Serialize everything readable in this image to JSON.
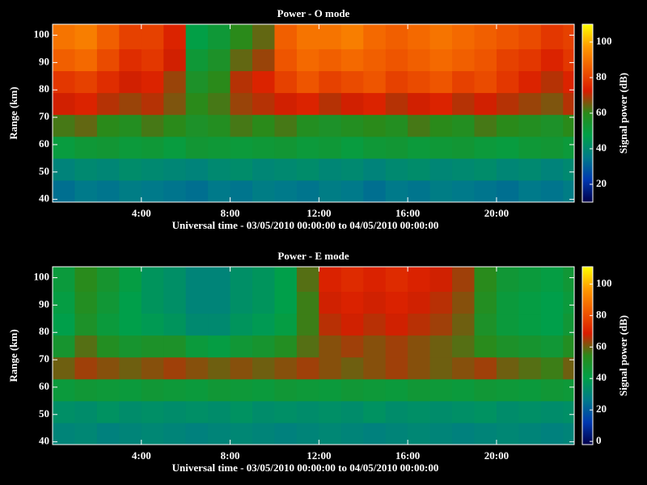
{
  "chart_data": [
    {
      "type": "heatmap",
      "title": "Power - O mode",
      "xlabel": "Universal time - 03/05/2010 00:00:00 to 04/05/2010 00:00:00",
      "ylabel": "Range (km)",
      "colorbar_label": "Signal power (dB)",
      "xlim": [
        0,
        23.5
      ],
      "ylim": [
        39,
        104
      ],
      "clim": [
        10,
        110
      ],
      "xticks": [
        {
          "value": 4,
          "label": "4:00"
        },
        {
          "value": 8,
          "label": "8:00"
        },
        {
          "value": 12,
          "label": "12:00"
        },
        {
          "value": 16,
          "label": "16:00"
        },
        {
          "value": 20,
          "label": "20:00"
        }
      ],
      "yticks": [
        40,
        50,
        60,
        70,
        80,
        90,
        100
      ],
      "cticks": [
        20,
        40,
        60,
        80,
        100
      ],
      "colormap": [
        "#00004a",
        "#0038b0",
        "#007a8a",
        "#00a048",
        "#2a8a1a",
        "#d81c00",
        "#f05a00",
        "#ff9a00",
        "#ffff00"
      ],
      "x": [
        0,
        1,
        2,
        3,
        4,
        5,
        6,
        7,
        8,
        9,
        10,
        11,
        12,
        13,
        14,
        15,
        16,
        17,
        18,
        19,
        20,
        21,
        22,
        23
      ],
      "y": [
        39,
        47,
        55,
        63,
        71,
        79,
        87,
        95
      ],
      "z": [
        [
          33,
          35,
          34,
          36,
          35,
          34,
          33,
          35,
          34,
          36,
          35,
          34,
          36,
          35,
          33,
          35,
          34,
          36,
          35,
          34,
          33,
          35,
          34,
          36
        ],
        [
          38,
          40,
          39,
          41,
          40,
          39,
          38,
          40,
          41,
          39,
          40,
          41,
          39,
          40,
          38,
          40,
          41,
          39,
          40,
          41,
          39,
          40,
          38,
          40
        ],
        [
          50,
          52,
          53,
          51,
          52,
          50,
          53,
          52,
          51,
          52,
          53,
          51,
          52,
          50,
          52,
          53,
          51,
          52,
          53,
          51,
          50,
          52,
          53,
          51
        ],
        [
          62,
          64,
          60,
          58,
          62,
          60,
          56,
          58,
          62,
          60,
          62,
          58,
          56,
          58,
          60,
          58,
          62,
          60,
          58,
          62,
          60,
          58,
          56,
          60
        ],
        [
          72,
          74,
          70,
          68,
          70,
          66,
          60,
          62,
          68,
          70,
          72,
          74,
          70,
          72,
          74,
          70,
          72,
          74,
          70,
          72,
          70,
          68,
          66,
          70
        ],
        [
          78,
          80,
          76,
          72,
          74,
          68,
          56,
          60,
          70,
          74,
          80,
          84,
          80,
          82,
          84,
          80,
          82,
          84,
          80,
          82,
          78,
          74,
          70,
          74
        ],
        [
          86,
          88,
          82,
          76,
          78,
          72,
          52,
          56,
          64,
          68,
          84,
          88,
          86,
          88,
          86,
          84,
          86,
          88,
          86,
          84,
          80,
          78,
          74,
          78
        ],
        [
          90,
          92,
          86,
          80,
          80,
          74,
          48,
          52,
          60,
          64,
          86,
          90,
          90,
          92,
          88,
          86,
          88,
          90,
          88,
          86,
          84,
          82,
          78,
          80
        ]
      ]
    },
    {
      "type": "heatmap",
      "title": "Power - E mode",
      "xlabel": "Universal time - 03/05/2010 00:00:00 to 04/05/2010 00:00:00",
      "ylabel": "Range (km)",
      "colorbar_label": "Signal power (dB)",
      "xlim": [
        0,
        23.5
      ],
      "ylim": [
        39,
        104
      ],
      "clim": [
        -2,
        111
      ],
      "xticks": [
        {
          "value": 4,
          "label": "4:00"
        },
        {
          "value": 8,
          "label": "8:00"
        },
        {
          "value": 12,
          "label": "12:00"
        },
        {
          "value": 16,
          "label": "16:00"
        },
        {
          "value": 20,
          "label": "20:00"
        }
      ],
      "yticks": [
        40,
        50,
        60,
        70,
        80,
        90,
        100
      ],
      "cticks": [
        0,
        20,
        40,
        60,
        80,
        100
      ],
      "colormap": [
        "#00004a",
        "#0038b0",
        "#007a8a",
        "#00a048",
        "#2a8a1a",
        "#d81c00",
        "#f05a00",
        "#ff9a00",
        "#ffff00"
      ],
      "x": [
        0,
        1,
        2,
        3,
        4,
        5,
        6,
        7,
        8,
        9,
        10,
        11,
        12,
        13,
        14,
        15,
        16,
        17,
        18,
        19,
        20,
        21,
        22,
        23
      ],
      "y": [
        39,
        47,
        55,
        63,
        71,
        79,
        87,
        95
      ],
      "z": [
        [
          30,
          31,
          29,
          30,
          31,
          30,
          29,
          30,
          31,
          30,
          29,
          30,
          31,
          30,
          29,
          30,
          31,
          30,
          29,
          30,
          31,
          30,
          29,
          30
        ],
        [
          34,
          33,
          35,
          33,
          34,
          33,
          34,
          33,
          35,
          33,
          34,
          33,
          34,
          33,
          35,
          33,
          34,
          33,
          34,
          35,
          33,
          34,
          33,
          34
        ],
        [
          44,
          46,
          45,
          44,
          46,
          45,
          44,
          46,
          45,
          44,
          46,
          45,
          44,
          46,
          45,
          44,
          46,
          45,
          44,
          46,
          45,
          44,
          46,
          45
        ],
        [
          60,
          64,
          62,
          60,
          62,
          64,
          62,
          60,
          62,
          60,
          62,
          64,
          62,
          60,
          62,
          64,
          62,
          60,
          62,
          64,
          60,
          58,
          56,
          60
        ],
        [
          48,
          58,
          52,
          48,
          50,
          50,
          44,
          42,
          46,
          48,
          52,
          58,
          62,
          64,
          62,
          64,
          62,
          60,
          58,
          54,
          50,
          48,
          46,
          52
        ],
        [
          40,
          50,
          44,
          40,
          38,
          36,
          32,
          32,
          36,
          38,
          42,
          56,
          66,
          68,
          66,
          68,
          66,
          64,
          60,
          50,
          44,
          42,
          40,
          46
        ],
        [
          42,
          52,
          46,
          40,
          36,
          34,
          30,
          30,
          34,
          36,
          40,
          56,
          68,
          70,
          68,
          70,
          68,
          66,
          62,
          52,
          44,
          42,
          40,
          44
        ],
        [
          44,
          54,
          48,
          42,
          36,
          34,
          30,
          30,
          34,
          36,
          40,
          58,
          70,
          72,
          70,
          72,
          70,
          68,
          64,
          54,
          46,
          44,
          42,
          46
        ]
      ]
    }
  ]
}
